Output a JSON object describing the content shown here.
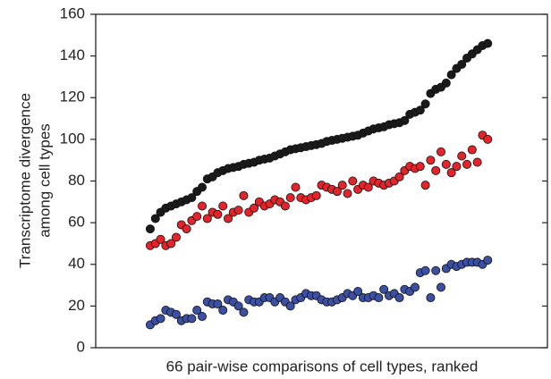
{
  "chart_data": {
    "type": "scatter",
    "xlabel": "66 pair-wise comparisons of cell types, ranked",
    "ylabel": [
      "Transcriptome divergence",
      "among cell types"
    ],
    "x": [
      1,
      2,
      3,
      4,
      5,
      6,
      7,
      8,
      9,
      10,
      11,
      12,
      13,
      14,
      15,
      16,
      17,
      18,
      19,
      20,
      21,
      22,
      23,
      24,
      25,
      26,
      27,
      28,
      29,
      30,
      31,
      32,
      33,
      34,
      35,
      36,
      37,
      38,
      39,
      40,
      41,
      42,
      43,
      44,
      45,
      46,
      47,
      48,
      49,
      50,
      51,
      52,
      53,
      54,
      55,
      56,
      57,
      58,
      59,
      60,
      61,
      62,
      63,
      64,
      65,
      66
    ],
    "xlim": [
      -9.5,
      77.5
    ],
    "ylim": [
      0,
      160
    ],
    "yticks": [
      0,
      20,
      40,
      60,
      80,
      100,
      120,
      140,
      160
    ],
    "series": [
      {
        "color": "#1a1a1a",
        "values": [
          57,
          62,
          65,
          67,
          68,
          69,
          70,
          71,
          72,
          75,
          77,
          81,
          82,
          84,
          85,
          86,
          86.5,
          87,
          88,
          88.5,
          89,
          90,
          90.5,
          91,
          92,
          93,
          94,
          95,
          95.5,
          96,
          96.5,
          97,
          97.5,
          98,
          99,
          99.5,
          100,
          100.5,
          101,
          101.5,
          102,
          103,
          104,
          105,
          105.5,
          106,
          107,
          107.5,
          108,
          109,
          112,
          113,
          114,
          117,
          122,
          124,
          125,
          127,
          131,
          134,
          136,
          139,
          141,
          143,
          145,
          146
        ]
      },
      {
        "color": "#e3242b",
        "values": [
          49,
          50,
          52,
          49,
          50,
          53,
          59,
          57,
          61,
          63,
          68,
          62,
          65,
          64,
          68,
          62,
          65,
          66,
          73,
          65,
          67,
          70,
          68,
          69,
          71,
          70,
          68,
          72,
          77,
          72,
          71,
          72,
          73,
          78,
          77,
          76,
          75,
          78,
          74,
          80,
          76,
          78,
          77,
          80,
          79,
          78,
          79,
          80,
          82,
          85,
          87,
          86,
          87,
          78,
          90,
          85,
          94,
          88,
          84,
          87,
          92,
          88,
          95,
          89,
          102,
          100
        ]
      },
      {
        "color": "#3b4fa3",
        "values": [
          11,
          13,
          14,
          18,
          17,
          16,
          13,
          14,
          14,
          18,
          15,
          22,
          21,
          21,
          18,
          23,
          22,
          20,
          17,
          23,
          22,
          22,
          24,
          24,
          22,
          24,
          22,
          20,
          23,
          24,
          26,
          25,
          25,
          23,
          22,
          22,
          23,
          24,
          26,
          25,
          27,
          24,
          24,
          25,
          24,
          28,
          25,
          26,
          24,
          28,
          27,
          29,
          36,
          37,
          24,
          37,
          29,
          38,
          40,
          39,
          40,
          41,
          41,
          41,
          40,
          42
        ]
      }
    ]
  }
}
